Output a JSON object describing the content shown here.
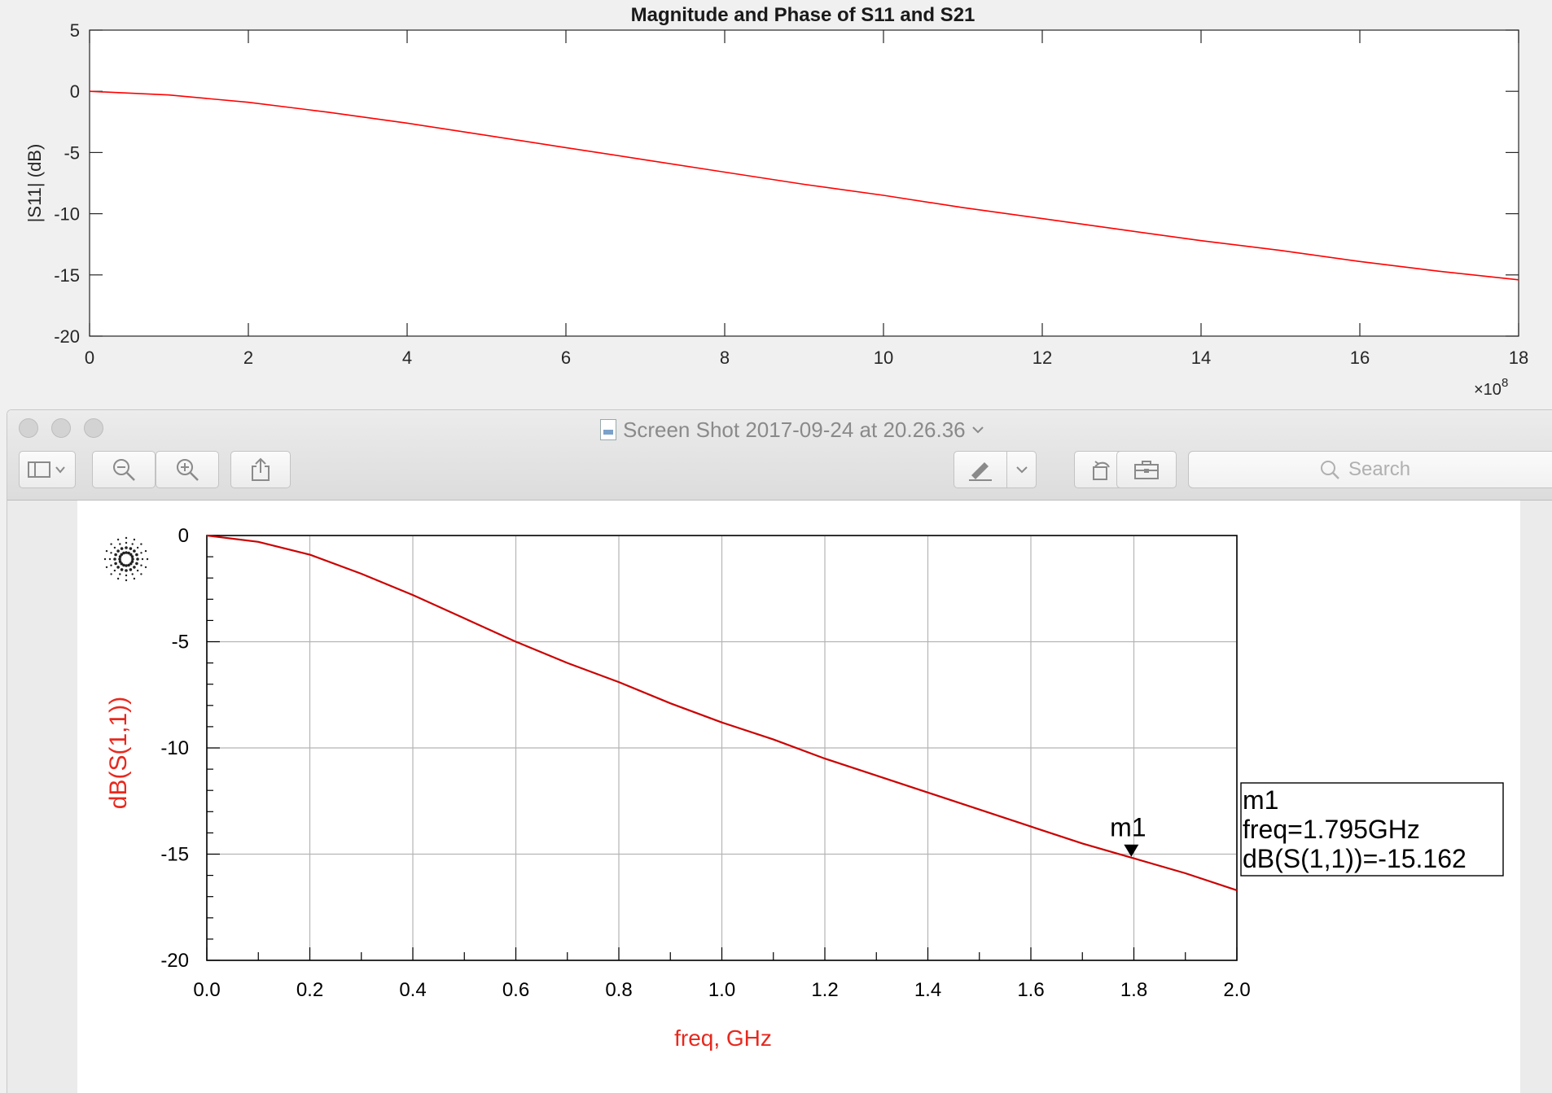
{
  "matlab": {
    "title": "Magnitude and Phase of S11 and S21",
    "ylabel": "|S11| (dB)",
    "x_exponent": "×10",
    "x_exponent_power": "8",
    "xticks": [
      "0",
      "2",
      "4",
      "6",
      "8",
      "10",
      "12",
      "14",
      "16",
      "18"
    ],
    "yticks": [
      "5",
      "0",
      "-5",
      "-10",
      "-15",
      "-20"
    ]
  },
  "preview": {
    "window_title": "Screen Shot 2017-09-24 at 20.26.36",
    "search_placeholder": "Search",
    "toolbar": {
      "sidebar_icon": "sidebar-icon",
      "zoom_out_icon": "zoom-out-icon",
      "zoom_in_icon": "zoom-in-icon",
      "share_icon": "share-icon",
      "markup_icon": "pen-icon",
      "rotate_icon": "rotate-icon",
      "toolbox_icon": "toolbox-icon"
    }
  },
  "ads": {
    "ylabel": "dB(S(1,1))",
    "xlabel": "freq, GHz",
    "xticks": [
      "0.0",
      "0.2",
      "0.4",
      "0.6",
      "0.8",
      "1.0",
      "1.2",
      "1.4",
      "1.6",
      "1.8",
      "2.0"
    ],
    "yticks": [
      "0",
      "-5",
      "-10",
      "-15",
      "-20"
    ],
    "marker": {
      "name": "m1",
      "lines": [
        "m1",
        "freq=1.795GHz",
        "dB(S(1,1))=-15.162"
      ],
      "freq_ghz": 1.795,
      "value_db": -15.162
    },
    "accent": "#e8281e"
  },
  "chart_data": [
    {
      "type": "line",
      "title": "Magnitude and Phase of S11 and S21",
      "xlabel": "",
      "ylabel": "|S11| (dB)",
      "x_scale_note": "×10^8",
      "xlim": [
        0,
        18
      ],
      "ylim": [
        -20,
        5
      ],
      "grid": false,
      "series": [
        {
          "color": "#ff0000",
          "x": [
            0,
            1,
            2,
            3,
            4,
            5,
            6,
            7,
            8,
            9,
            10,
            11,
            12,
            13,
            14,
            15,
            16,
            17,
            18
          ],
          "y": [
            0,
            -0.3,
            -0.9,
            -1.7,
            -2.6,
            -3.6,
            -4.6,
            -5.6,
            -6.6,
            -7.6,
            -8.5,
            -9.5,
            -10.4,
            -11.3,
            -12.2,
            -13.0,
            -13.9,
            -14.7,
            -15.4
          ]
        }
      ]
    },
    {
      "type": "line",
      "title": "",
      "xlabel": "freq, GHz",
      "ylabel": "dB(S(1,1))",
      "xlim": [
        0,
        2
      ],
      "ylim": [
        -20,
        0
      ],
      "grid": true,
      "series": [
        {
          "color": "#cc0000",
          "x": [
            0,
            0.1,
            0.2,
            0.3,
            0.4,
            0.5,
            0.6,
            0.7,
            0.8,
            0.9,
            1.0,
            1.1,
            1.2,
            1.3,
            1.4,
            1.5,
            1.6,
            1.7,
            1.8,
            1.9,
            2.0
          ],
          "y": [
            0,
            -0.3,
            -0.9,
            -1.8,
            -2.8,
            -3.9,
            -5.0,
            -6.0,
            -6.9,
            -7.9,
            -8.8,
            -9.6,
            -10.5,
            -11.3,
            -12.1,
            -12.9,
            -13.7,
            -14.5,
            -15.2,
            -15.9,
            -16.7
          ]
        }
      ],
      "markers": [
        {
          "name": "m1",
          "x": 1.795,
          "y": -15.162
        }
      ]
    }
  ]
}
